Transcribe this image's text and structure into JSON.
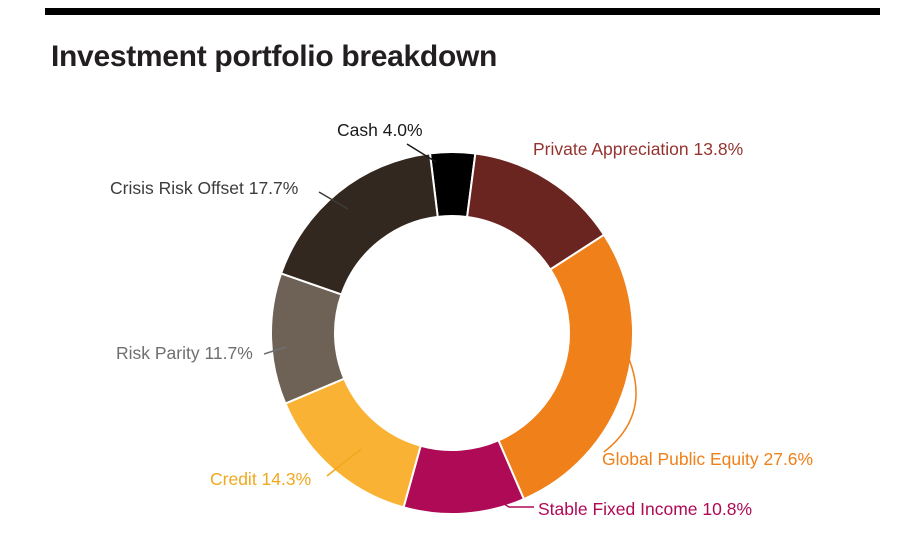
{
  "header": {
    "title": "Investment portfolio breakdown"
  },
  "chart_data": {
    "type": "pie",
    "subtype": "donut",
    "title": "Investment portfolio breakdown",
    "unit": "%",
    "start_angle_deg": -7,
    "direction": "clockwise",
    "legend": "none",
    "labels_style": "outside with leader lines",
    "slices": [
      {
        "label": "Cash",
        "value": 4.0,
        "display_label": "Cash 4.0%",
        "color": "#000000",
        "label_color": "#1a1a1a"
      },
      {
        "label": "Private Appreciation",
        "value": 13.8,
        "display_label": "Private Appreciation 13.8%",
        "color": "#6b2520",
        "label_color": "#943430"
      },
      {
        "label": "Global Public Equity",
        "value": 27.6,
        "display_label": "Global Public Equity 27.6%",
        "color": "#f08019",
        "label_color": "#ef8019"
      },
      {
        "label": "Stable Fixed Income",
        "value": 10.8,
        "display_label": "Stable Fixed Income 10.8%",
        "color": "#ae0a55",
        "label_color": "#ae0a55"
      },
      {
        "label": "Credit",
        "value": 14.3,
        "display_label": "Credit 14.3%",
        "color": "#f9b233",
        "label_color": "#f0a81f"
      },
      {
        "label": "Risk Parity",
        "value": 11.7,
        "display_label": "Risk Parity 11.7%",
        "color": "#6e6257",
        "label_color": "#6f6f6f"
      },
      {
        "label": "Crisis Risk Offset",
        "value": 17.7,
        "display_label": "Crisis Risk Offset 17.7%",
        "color": "#33281f",
        "label_color": "#3c3c3c"
      }
    ]
  }
}
